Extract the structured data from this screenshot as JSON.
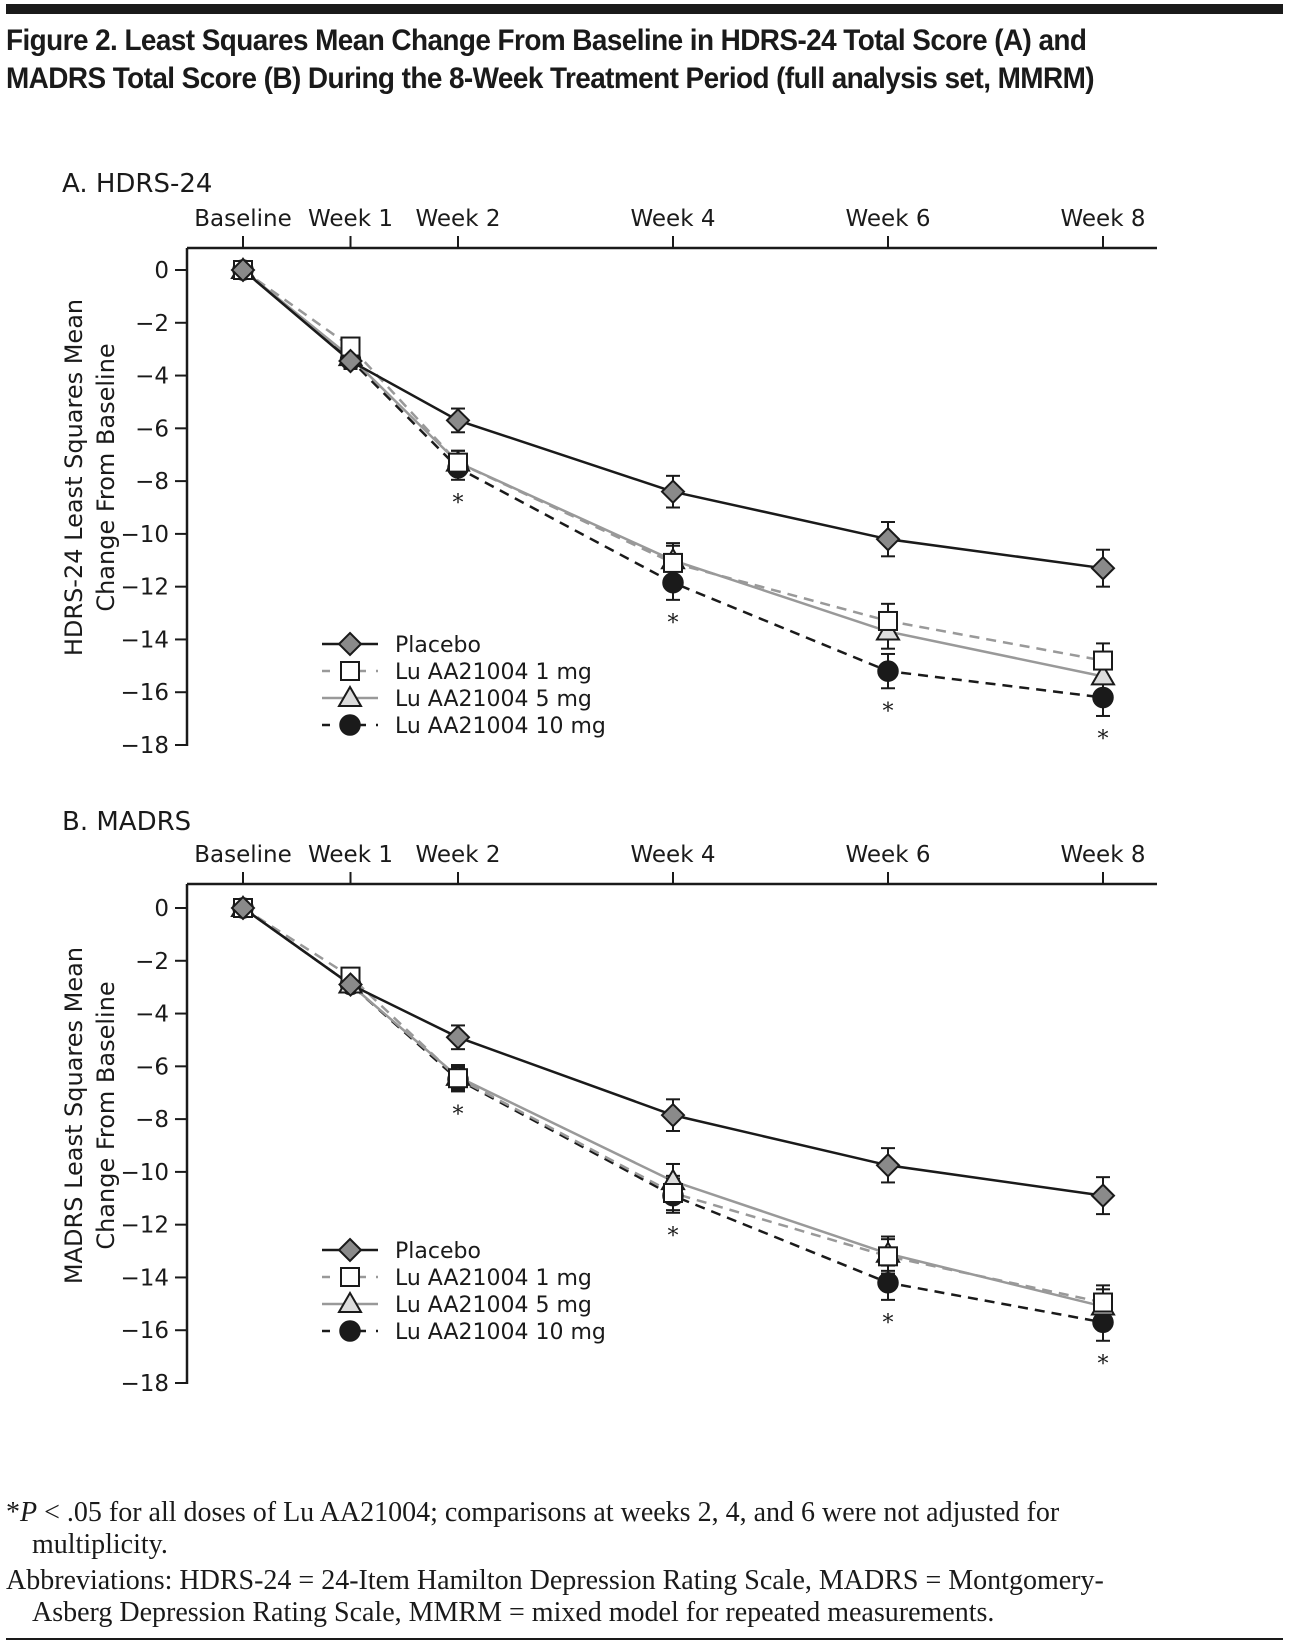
{
  "title": "Figure 2. Least Squares Mean Change From Baseline in HDRS-24 Total Score (A) and MADRS Total Score (B) During the 8-Week Treatment Period (full analysis set, MMRM)",
  "footnotes": {
    "significance_marker": "*",
    "significance_p": "P",
    "significance_rest": " < .05 for all doses of Lu AA21004; comparisons at weeks 2, 4, and 6 were not adjusted for",
    "significance_cont": "multiplicity.",
    "abbreviations_line1": "Abbreviations: HDRS-24 = 24-Item Hamilton Depression Rating Scale, MADRS = Montgomery-",
    "abbreviations_line2": "Asberg Depression Rating Scale, MMRM = mixed model for repeated measurements."
  },
  "chart_data": [
    {
      "type": "line",
      "panel_label": "A. HDRS-24",
      "title": "A. HDRS-24",
      "xlabel": "",
      "ylabel": "HDRS-24 Least Squares Mean Change From Baseline",
      "ylabel_lines": [
        "HDRS-24 Least Squares Mean",
        "Change From Baseline"
      ],
      "x_axis_position": "top",
      "categories": [
        "Baseline",
        "Week 1",
        "Week 2",
        "Week 4",
        "Week 6",
        "Week 8"
      ],
      "x_weeks": [
        0,
        1,
        2,
        4,
        6,
        8
      ],
      "ylim": [
        -18,
        0
      ],
      "yticks": [
        0,
        -2,
        -4,
        -6,
        -8,
        -10,
        -12,
        -14,
        -16,
        -18
      ],
      "ytick_labels": [
        "0",
        "−2",
        "−4",
        "−6",
        "−8",
        "−10",
        "−12",
        "−14",
        "−16",
        "−18"
      ],
      "grid": false,
      "legend_position": "bottom-left",
      "significance_weeks": [
        2,
        4,
        6,
        8
      ],
      "series": [
        {
          "name": "Placebo",
          "marker": "diamond",
          "line": "solid",
          "color": "#1a1a1a",
          "fill": "#8a8a8a",
          "values": [
            0,
            -3.45,
            -5.7,
            -8.4,
            -10.2,
            -11.3
          ],
          "se": [
            0,
            0.3,
            0.45,
            0.6,
            0.65,
            0.7
          ]
        },
        {
          "name": "Lu AA21004 1 mg",
          "marker": "square",
          "line": "dashed",
          "color": "#999999",
          "fill": "#ffffff",
          "values": [
            0,
            -2.9,
            -7.3,
            -11.1,
            -13.3,
            -14.8
          ],
          "se": [
            0,
            0.3,
            0.45,
            0.65,
            0.65,
            0.65
          ]
        },
        {
          "name": "Lu AA21004 5 mg",
          "marker": "triangle",
          "line": "solid",
          "color": "#999999",
          "fill": "#dcdcdc",
          "values": [
            0,
            -3.3,
            -7.3,
            -11.0,
            -13.7,
            -15.4
          ],
          "se": [
            0,
            0.3,
            0.45,
            0.65,
            0.65,
            0.65
          ]
        },
        {
          "name": "Lu AA21004 10 mg",
          "marker": "circle",
          "line": "dashed",
          "color": "#1a1a1a",
          "fill": "#1a1a1a",
          "values": [
            0,
            -3.4,
            -7.5,
            -11.85,
            -15.2,
            -16.2
          ],
          "se": [
            0,
            0.3,
            0.45,
            0.65,
            0.65,
            0.7
          ]
        }
      ]
    },
    {
      "type": "line",
      "panel_label": "B. MADRS",
      "title": "B. MADRS",
      "xlabel": "",
      "ylabel": "MADRS Least Squares Mean Change From Baseline",
      "ylabel_lines": [
        "MADRS Least Squares Mean",
        "Change From Baseline"
      ],
      "x_axis_position": "top",
      "categories": [
        "Baseline",
        "Week 1",
        "Week 2",
        "Week 4",
        "Week 6",
        "Week 8"
      ],
      "x_weeks": [
        0,
        1,
        2,
        4,
        6,
        8
      ],
      "ylim": [
        -18,
        0
      ],
      "yticks": [
        0,
        -2,
        -4,
        -6,
        -8,
        -10,
        -12,
        -14,
        -16,
        -18
      ],
      "ytick_labels": [
        "0",
        "−2",
        "−4",
        "−6",
        "−8",
        "−10",
        "−12",
        "−14",
        "−16",
        "−18"
      ],
      "grid": false,
      "legend_position": "bottom-left",
      "significance_weeks": [
        2,
        4,
        6,
        8
      ],
      "series": [
        {
          "name": "Placebo",
          "marker": "diamond",
          "line": "solid",
          "color": "#1a1a1a",
          "fill": "#8a8a8a",
          "values": [
            0,
            -2.9,
            -4.9,
            -7.85,
            -9.75,
            -10.9
          ],
          "se": [
            0,
            0.3,
            0.45,
            0.6,
            0.65,
            0.7
          ]
        },
        {
          "name": "Lu AA21004 1 mg",
          "marker": "square",
          "line": "dashed",
          "color": "#999999",
          "fill": "#ffffff",
          "values": [
            0,
            -2.6,
            -6.45,
            -10.8,
            -13.2,
            -14.95
          ],
          "se": [
            0,
            0.3,
            0.45,
            0.65,
            0.65,
            0.65
          ]
        },
        {
          "name": "Lu AA21004 5 mg",
          "marker": "triangle",
          "line": "solid",
          "color": "#999999",
          "fill": "#dcdcdc",
          "values": [
            0,
            -2.9,
            -6.4,
            -10.35,
            -13.1,
            -15.1
          ],
          "se": [
            0,
            0.3,
            0.45,
            0.65,
            0.65,
            0.65
          ]
        },
        {
          "name": "Lu AA21004 10 mg",
          "marker": "circle",
          "line": "dashed",
          "color": "#1a1a1a",
          "fill": "#1a1a1a",
          "values": [
            0,
            -2.9,
            -6.5,
            -10.9,
            -14.2,
            -15.7
          ],
          "se": [
            0,
            0.3,
            0.45,
            0.65,
            0.65,
            0.7
          ]
        }
      ]
    }
  ]
}
